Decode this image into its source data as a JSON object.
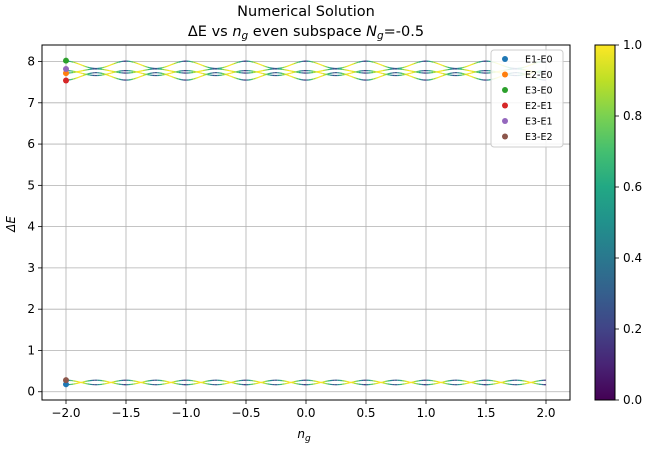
{
  "chart_data": {
    "type": "line",
    "title_line1": "Numerical Solution",
    "title_line2": {
      "pre": "ΔE vs ",
      "var": "n",
      "sub": "g",
      "mid": " even subspace ",
      "var2": "N",
      "sub2": "g",
      "post": "=-0.5"
    },
    "xlabel": {
      "var": "n",
      "sub": "g"
    },
    "ylabel": "ΔE",
    "xlim": [
      -2.2,
      2.2
    ],
    "ylim": [
      -0.2,
      8.4
    ],
    "xticks": [
      -2.0,
      -1.5,
      -1.0,
      -0.5,
      0.0,
      0.5,
      1.0,
      1.5,
      2.0
    ],
    "xtick_labels": [
      "−2.0",
      "−1.5",
      "−1.0",
      "−0.5",
      "0.0",
      "0.5",
      "1.0",
      "1.5",
      "2.0"
    ],
    "yticks": [
      0,
      1,
      2,
      3,
      4,
      5,
      6,
      7,
      8
    ],
    "ytick_labels": [
      "0",
      "1",
      "2",
      "3",
      "4",
      "5",
      "6",
      "7",
      "8"
    ],
    "grid": true,
    "legend_position": "top-right",
    "series": [
      {
        "name": "E1-E0",
        "color": "#1f77b4",
        "x0": -2.0,
        "y0": 0.18,
        "center": 0.225,
        "amp": 0.055,
        "period": 0.5,
        "phase": 1
      },
      {
        "name": "E2-E0",
        "color": "#ff7f0e",
        "x0": -2.0,
        "y0": 7.72,
        "center": 7.77,
        "amp": 0.05,
        "period": 0.5,
        "phase": -1
      },
      {
        "name": "E3-E0",
        "color": "#2ca02c",
        "x0": -2.0,
        "y0": 8.02,
        "center": 7.92,
        "amp": 0.09,
        "period": 0.5,
        "phase": 1
      },
      {
        "name": "E2-E1",
        "color": "#d62728",
        "x0": -2.0,
        "y0": 7.54,
        "center": 7.64,
        "amp": 0.09,
        "period": 0.5,
        "phase": -1
      },
      {
        "name": "E3-E1",
        "color": "#9467bd",
        "x0": -2.0,
        "y0": 7.82,
        "center": 7.72,
        "amp": 0.06,
        "period": 0.5,
        "phase": 1
      },
      {
        "name": "E3-E2",
        "color": "#8c564b",
        "x0": -2.0,
        "y0": 0.28,
        "center": 0.225,
        "amp": 0.055,
        "period": 0.5,
        "phase": -1
      }
    ],
    "colorbar": {
      "colormap": "viridis",
      "range": [
        0.0,
        1.0
      ],
      "ticks": [
        0.0,
        0.2,
        0.4,
        0.6,
        0.8,
        1.0
      ],
      "tick_labels": [
        "0.0",
        "0.2",
        "0.4",
        "0.6",
        "0.8",
        "1.0"
      ]
    }
  }
}
